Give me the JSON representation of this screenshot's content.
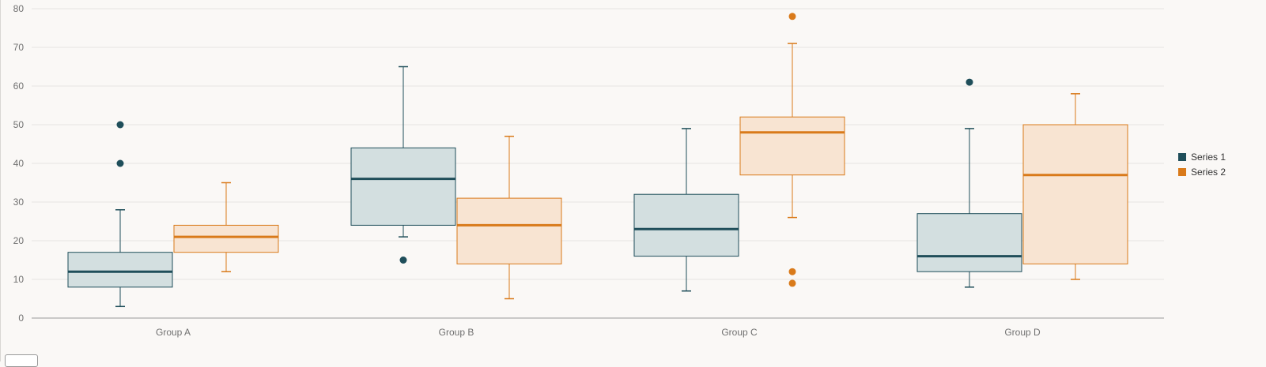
{
  "chart_data": {
    "type": "boxplot",
    "categories": [
      "Group A",
      "Group B",
      "Group C",
      "Group D"
    ],
    "ylim": [
      0,
      80
    ],
    "yticks": [
      "0",
      "10",
      "20",
      "30",
      "40",
      "50",
      "60",
      "70",
      "80"
    ],
    "grid": true,
    "legend_position": "right",
    "series": [
      {
        "name": "Series 1",
        "color": "#1f4e5a",
        "fill": "#d3dfe0",
        "boxes": [
          {
            "min": 3,
            "q1": 8,
            "median": 12,
            "q3": 17,
            "max": 28,
            "outliers": [
              40,
              50
            ]
          },
          {
            "min": 21,
            "q1": 24,
            "median": 36,
            "q3": 44,
            "max": 65,
            "outliers": [
              15
            ]
          },
          {
            "min": 7,
            "q1": 16,
            "median": 23,
            "q3": 32,
            "max": 49,
            "outliers": []
          },
          {
            "min": 8,
            "q1": 12,
            "median": 16,
            "q3": 27,
            "max": 49,
            "outliers": [
              61
            ]
          }
        ]
      },
      {
        "name": "Series 2",
        "color": "#d97a1a",
        "fill": "#f8e4d2",
        "boxes": [
          {
            "min": 12,
            "q1": 17,
            "median": 21,
            "q3": 24,
            "max": 35,
            "outliers": []
          },
          {
            "min": 5,
            "q1": 14,
            "median": 24,
            "q3": 31,
            "max": 47,
            "outliers": []
          },
          {
            "min": 26,
            "q1": 37,
            "median": 48,
            "q3": 52,
            "max": 71,
            "outliers": [
              9,
              12,
              78
            ]
          },
          {
            "min": 10,
            "q1": 14,
            "median": 37,
            "q3": 50,
            "max": 58,
            "outliers": []
          }
        ]
      }
    ]
  }
}
